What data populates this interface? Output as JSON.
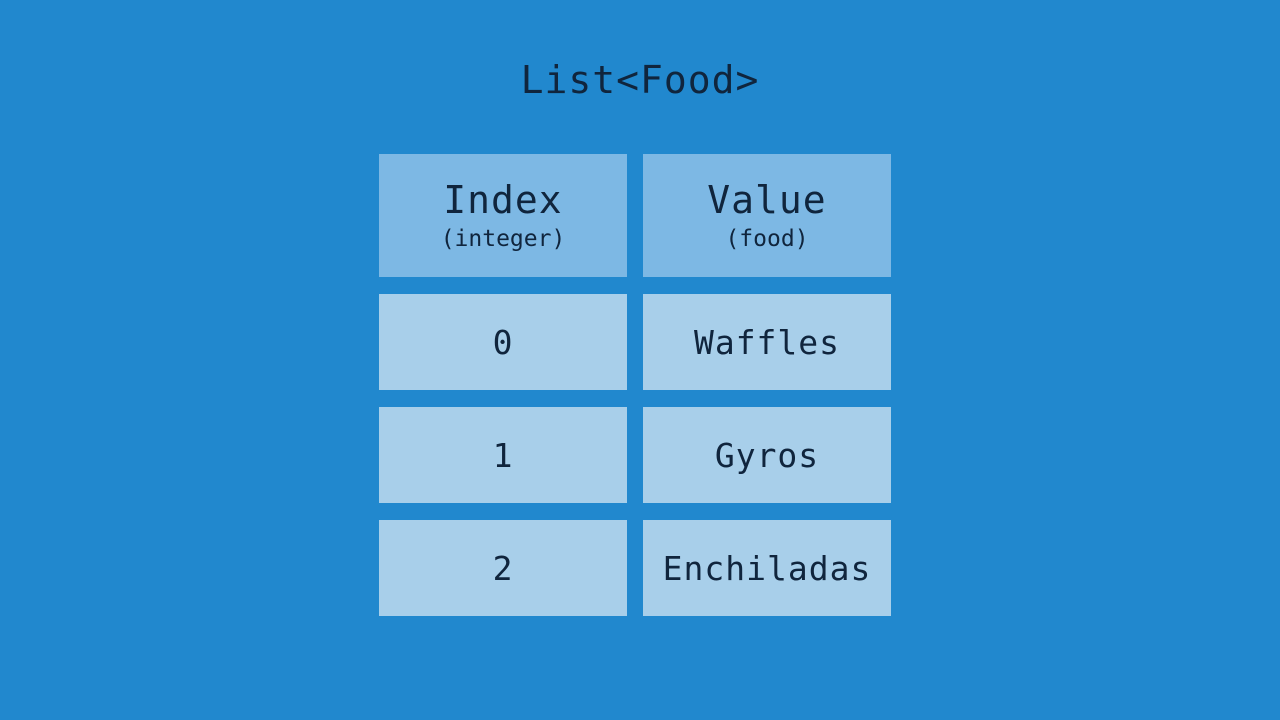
{
  "title": "List<Food>",
  "headers": [
    {
      "label": "Index",
      "sub": "(integer)"
    },
    {
      "label": "Value",
      "sub": "(food)"
    }
  ],
  "rows": [
    {
      "index": "0",
      "value": "Waffles"
    },
    {
      "index": "1",
      "value": "Gyros"
    },
    {
      "index": "2",
      "value": "Enchiladas"
    }
  ],
  "colors": {
    "background": "#2188ce",
    "header": "#7db8e4",
    "cell": "#a8cfea",
    "text": "#10253d"
  }
}
